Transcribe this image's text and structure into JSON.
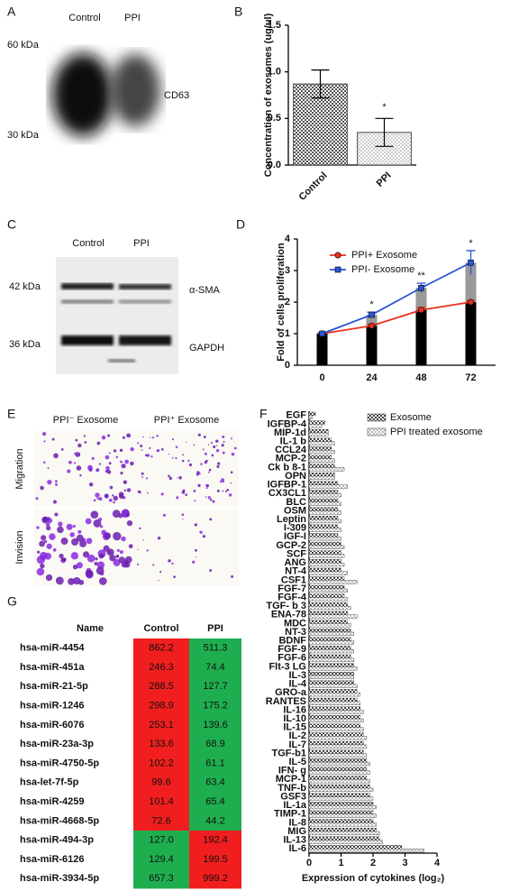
{
  "panel_labels": [
    "A",
    "B",
    "C",
    "D",
    "E",
    "F",
    "G"
  ],
  "blot_a": {
    "lanes": [
      "Control",
      "PPI"
    ],
    "markers": [
      "60 kDa",
      "30 kDa"
    ],
    "band": "CD63"
  },
  "blot_c": {
    "lanes": [
      "Control",
      "PPI"
    ],
    "markers": [
      "42 kDa",
      "36 kDa"
    ],
    "bands": [
      "α-SMA",
      "GAPDH"
    ]
  },
  "panel_e": {
    "columns": [
      "PPI⁻ Exosome",
      "PPI⁺ Exosome"
    ],
    "rows": [
      "Migration",
      "Invision"
    ]
  },
  "chart_data": [
    {
      "type": "bar",
      "y_label": "Concentration of exosomes (ug/ul)",
      "categories": [
        "Control",
        "PPI"
      ],
      "values": [
        0.87,
        0.35
      ],
      "errors": [
        0.15,
        0.15
      ],
      "colors": [
        "#555555",
        "#cccccc"
      ],
      "annotations": [
        null,
        "*"
      ],
      "ylim": [
        0,
        1.5
      ],
      "yticks": [
        {
          "value": 0,
          "label": "0.0"
        },
        {
          "value": 0.5,
          "label": "0.5"
        },
        {
          "value": 1,
          "label": "1.0"
        },
        {
          "value": 1.5,
          "label": "1.5"
        }
      ]
    },
    {
      "type": "line",
      "y_label": "Fold of cells proliferation",
      "categories": [
        "0",
        "24",
        "48",
        "72"
      ],
      "series": [
        {
          "name": "PPI+ Exosome",
          "color": "#e8301c",
          "bar_color": "#000000",
          "values": [
            1.0,
            1.25,
            1.75,
            2.0
          ],
          "errors": [
            0.03,
            0.05,
            0.08,
            0.05
          ]
        },
        {
          "name": "PPI- Exosome",
          "color": "#2a55d8",
          "bar_color": "#999999",
          "values": [
            1.0,
            1.6,
            2.45,
            3.25
          ],
          "errors": [
            0.03,
            0.08,
            0.15,
            0.38
          ]
        }
      ],
      "annotations": [
        null,
        "*",
        "**",
        "*"
      ],
      "ylim": [
        0,
        4
      ],
      "yticks": [
        0,
        1,
        2,
        3,
        4
      ]
    },
    {
      "type": "hbar",
      "x_label": "Expression of cytokines (log₂)",
      "categories": [
        "EGF",
        "IGFBP-4",
        "MIP-1d",
        "IL-1 b",
        "CCL24",
        "MCP-2",
        "Ck b 8-1",
        "OPN",
        "IGFBP-1",
        "CX3CL1",
        "BLC",
        "OSM",
        "Leptin",
        "I-309",
        "IGF-I",
        "GCP-2",
        "SCF",
        "ANG",
        "NT-4",
        "CSF1",
        "FGF-7",
        "FGF-4",
        "TGF- b 3",
        "ENA-78",
        "MDC",
        "NT-3",
        "BDNF",
        "FGF-9",
        "FGF-6",
        "Flt-3 LG",
        "IL-3",
        "IL-4",
        "GRO-a",
        "RANTES",
        "IL-16",
        "IL-10",
        "IL-15",
        "IL-2",
        "IL-7",
        "TGF-b1",
        "IL-5",
        "IFN- g",
        "MCP-1",
        "TNF-b",
        "GSF3",
        "IL-1a",
        "TIMP-1",
        "IL-8",
        "MIG",
        "IL-13",
        "IL-6"
      ],
      "series": [
        {
          "name": "Exosome",
          "color": "#444444",
          "values": [
            0.2,
            0.5,
            0.6,
            0.7,
            0.7,
            0.7,
            0.8,
            0.8,
            0.9,
            0.9,
            0.9,
            0.9,
            0.9,
            0.9,
            0.9,
            1.0,
            1.0,
            1.0,
            1.0,
            1.1,
            1.1,
            1.1,
            1.2,
            1.2,
            1.2,
            1.3,
            1.3,
            1.3,
            1.3,
            1.4,
            1.4,
            1.4,
            1.5,
            1.5,
            1.6,
            1.6,
            1.6,
            1.7,
            1.7,
            1.7,
            1.8,
            1.8,
            1.8,
            1.9,
            1.9,
            2.0,
            2.0,
            2.0,
            2.1,
            2.2,
            2.9
          ]
        },
        {
          "name": "PPI treated exosome",
          "color": "#bbbbbb",
          "values": [
            0.1,
            0.4,
            0.6,
            0.8,
            0.8,
            0.8,
            1.1,
            0.8,
            1.2,
            1.0,
            1.0,
            1.0,
            1.0,
            1.0,
            1.0,
            1.1,
            1.1,
            1.1,
            1.2,
            1.5,
            1.2,
            1.2,
            1.3,
            1.5,
            1.3,
            1.4,
            1.4,
            1.4,
            1.4,
            1.5,
            1.4,
            1.5,
            1.6,
            1.6,
            1.7,
            1.7,
            1.7,
            1.8,
            1.8,
            1.8,
            1.9,
            1.9,
            1.9,
            2.0,
            2.0,
            2.1,
            2.1,
            2.1,
            2.2,
            2.3,
            3.6
          ]
        }
      ],
      "xlim": [
        0,
        4
      ],
      "xticks": [
        0,
        1,
        2,
        3,
        4
      ]
    }
  ],
  "table_g": {
    "header": [
      "Name",
      "Control",
      "PPI"
    ],
    "rows": [
      {
        "cells": [
          "hsa-miR-4454",
          "862.2",
          "511.3"
        ],
        "colors": [
          "#f01e1e",
          "#1fae4f"
        ]
      },
      {
        "cells": [
          "hsa-miR-451a",
          "246.3",
          "74.4"
        ],
        "colors": [
          "#f01e1e",
          "#1fae4f"
        ]
      },
      {
        "cells": [
          "hsa-miR-21-5p",
          "288.5",
          "127.7"
        ],
        "colors": [
          "#f01e1e",
          "#1fae4f"
        ]
      },
      {
        "cells": [
          "hsa-miR-1246",
          "298.9",
          "175.2"
        ],
        "colors": [
          "#f01e1e",
          "#1fae4f"
        ]
      },
      {
        "cells": [
          "hsa-miR-6076",
          "253.1",
          "139.6"
        ],
        "colors": [
          "#f01e1e",
          "#1fae4f"
        ]
      },
      {
        "cells": [
          "hsa-miR-23a-3p",
          "133.6",
          "68.9"
        ],
        "colors": [
          "#f01e1e",
          "#1fae4f"
        ]
      },
      {
        "cells": [
          "hsa-miR-4750-5p",
          "102.2",
          "61.1"
        ],
        "colors": [
          "#f01e1e",
          "#1fae4f"
        ]
      },
      {
        "cells": [
          "hsa-let-7f-5p",
          "99.6",
          "63.4"
        ],
        "colors": [
          "#f01e1e",
          "#1fae4f"
        ]
      },
      {
        "cells": [
          "hsa-miR-4259",
          "101.4",
          "65.4"
        ],
        "colors": [
          "#f01e1e",
          "#1fae4f"
        ]
      },
      {
        "cells": [
          "hsa-miR-4668-5p",
          "72.6",
          "44.2"
        ],
        "colors": [
          "#f01e1e",
          "#1fae4f"
        ]
      },
      {
        "cells": [
          "hsa-miR-494-3p",
          "127.0",
          "192.4"
        ],
        "colors": [
          "#1fae4f",
          "#f01e1e"
        ]
      },
      {
        "cells": [
          "hsa-miR-6126",
          "129.4",
          "199.5"
        ],
        "colors": [
          "#1fae4f",
          "#f01e1e"
        ]
      },
      {
        "cells": [
          "hsa-miR-3934-5p",
          "657.3",
          "999.2"
        ],
        "colors": [
          "#1fae4f",
          "#f01e1e"
        ]
      }
    ]
  }
}
